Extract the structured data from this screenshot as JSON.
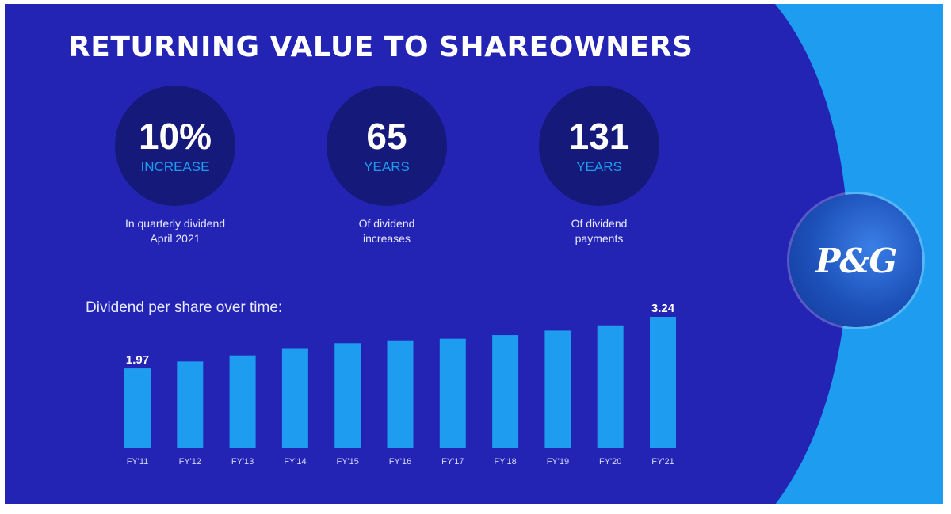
{
  "title": "RETURNING VALUE TO SHAREOWNERS",
  "colors": {
    "background": "#2323b4",
    "accent": "#1e9cf0",
    "bar": "#1e9cf0",
    "circle": "#151a7a"
  },
  "stats": [
    {
      "value": "10%",
      "unit": "INCREASE",
      "caption_line1": "In quarterly dividend",
      "caption_line2": "April 2021"
    },
    {
      "value": "65",
      "unit": "YEARS",
      "caption_line1": "Of dividend",
      "caption_line2": "increases"
    },
    {
      "value": "131",
      "unit": "YEARS",
      "caption_line1": "Of dividend",
      "caption_line2": "payments"
    }
  ],
  "logo": {
    "text": "P&G"
  },
  "chart_data": {
    "type": "bar",
    "title": "Dividend per share over time:",
    "categories": [
      "FY'11",
      "FY'12",
      "FY'13",
      "FY'14",
      "FY'15",
      "FY'16",
      "FY'17",
      "FY'18",
      "FY'19",
      "FY'20",
      "FY'21"
    ],
    "values": [
      1.97,
      2.14,
      2.29,
      2.45,
      2.59,
      2.66,
      2.7,
      2.79,
      2.9,
      3.03,
      3.24
    ],
    "data_labels": [
      {
        "index": 0,
        "text": "1.97"
      },
      {
        "index": 10,
        "text": "3.24"
      }
    ],
    "xlabel": "",
    "ylabel": "",
    "ylim": [
      0,
      3.24
    ],
    "grid": false,
    "legend": "none"
  }
}
